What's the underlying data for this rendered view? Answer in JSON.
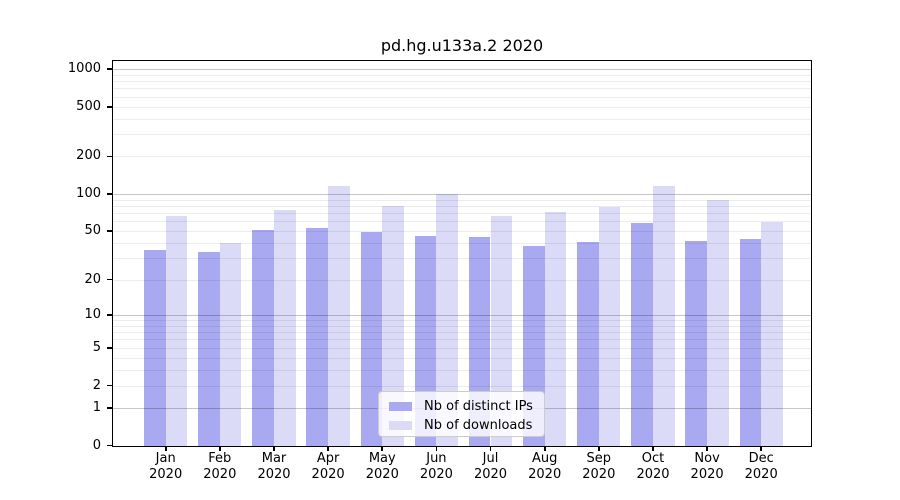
{
  "chart_data": {
    "type": "bar",
    "title": "pd.hg.u133a.2 2020",
    "categories": [
      "Jan",
      "Feb",
      "Mar",
      "Apr",
      "May",
      "Jun",
      "Jul",
      "Aug",
      "Sep",
      "Oct",
      "Nov",
      "Dec"
    ],
    "x_year": "2020",
    "series": [
      {
        "name": "Nb of distinct IPs",
        "color": "#a9a9f1",
        "values": [
          35,
          34,
          51,
          53,
          49,
          46,
          45,
          38,
          41,
          58,
          42,
          43
        ]
      },
      {
        "name": "Nb of downloads",
        "color": "#dbdbf8",
        "values": [
          67,
          40,
          75,
          117,
          80,
          100,
          66,
          71,
          78,
          117,
          89,
          59
        ]
      }
    ],
    "y_scale": "log1p",
    "y_ticks": [
      0,
      1,
      2,
      5,
      10,
      20,
      50,
      100,
      200,
      500,
      1000
    ],
    "y_minor_ticks": [
      2,
      3,
      4,
      5,
      6,
      7,
      8,
      9,
      20,
      30,
      40,
      50,
      60,
      70,
      80,
      90,
      200,
      300,
      400,
      500,
      600,
      700,
      800,
      900
    ],
    "ylim": [
      0,
      1160
    ],
    "grid": true,
    "legend_position": "lower center",
    "colors": {
      "major_grid": "#c7c7c7",
      "minor_grid": "#ececec",
      "axis": "#000000"
    }
  }
}
